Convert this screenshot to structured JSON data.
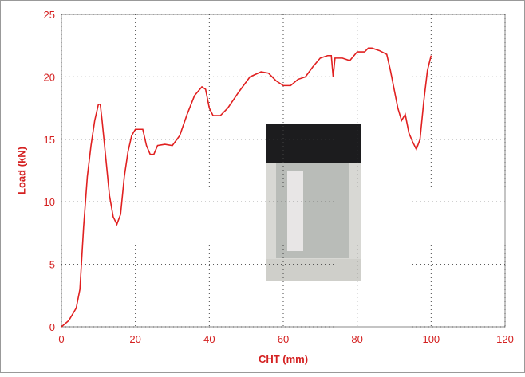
{
  "chart_data": {
    "type": "line",
    "x_label": "CHT (mm)",
    "y_label": "Load (kN)",
    "xlim": [
      0,
      120
    ],
    "xticks": [
      0,
      20,
      40,
      60,
      80,
      100,
      120
    ],
    "ylim": [
      0,
      25
    ],
    "yticks": [
      0,
      5,
      10,
      15,
      20,
      25
    ],
    "grid": true,
    "series": [
      {
        "color": "#e02020",
        "x": [
          0,
          2,
          4,
          5,
          6,
          7,
          8,
          9,
          10,
          10.5,
          11,
          12,
          13,
          14,
          15,
          16,
          17,
          18,
          19,
          20,
          22,
          23,
          24,
          25,
          26,
          28,
          30,
          32,
          34,
          36,
          38,
          39,
          40,
          41,
          43,
          45,
          48,
          51,
          54,
          56,
          58,
          60,
          62,
          64,
          66,
          68,
          70,
          72,
          73,
          73.5,
          74,
          76,
          78,
          80,
          82,
          83,
          84,
          86,
          88,
          89,
          90,
          91,
          92,
          93,
          94,
          95,
          96,
          97,
          98,
          99,
          100
        ],
        "values": [
          0,
          0.5,
          1.5,
          3,
          8,
          12,
          14.5,
          16.5,
          17.8,
          17.8,
          16.5,
          13.5,
          10.5,
          8.8,
          8.2,
          9,
          12,
          14,
          15.3,
          15.8,
          15.8,
          14.5,
          13.8,
          13.8,
          14.5,
          14.6,
          14.5,
          15.3,
          17,
          18.5,
          19.2,
          19,
          17.5,
          16.9,
          16.9,
          17.5,
          18.8,
          20,
          20.4,
          20.3,
          19.7,
          19.3,
          19.3,
          19.8,
          20,
          20.8,
          21.5,
          21.7,
          21.7,
          20,
          21.5,
          21.5,
          21.3,
          22,
          22,
          22.3,
          22.3,
          22.1,
          21.8,
          20.5,
          19,
          17.5,
          16.5,
          17,
          15.5,
          14.8,
          14.2,
          15,
          18,
          20.5,
          21.7
        ]
      }
    ]
  }
}
